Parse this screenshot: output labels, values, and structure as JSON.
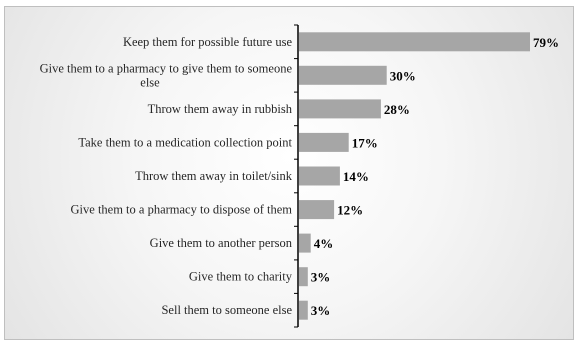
{
  "chart_data": {
    "type": "bar",
    "orientation": "horizontal",
    "categories": [
      [
        "Keep them for possible future use"
      ],
      [
        "Give them to a pharmacy to give them to someone",
        "else"
      ],
      [
        "Throw them away in rubbish"
      ],
      [
        "Take them to a medication collection point"
      ],
      [
        "Throw them away in toilet/sink"
      ],
      [
        "Give them to a pharmacy to dispose of them"
      ],
      [
        "Give them to another person"
      ],
      [
        "Give them to charity"
      ],
      [
        "Sell them to someone else"
      ]
    ],
    "values": [
      79,
      30,
      28,
      17,
      14,
      12,
      4,
      3,
      3
    ],
    "value_labels": [
      "79%",
      "30%",
      "28%",
      "17%",
      "14%",
      "12%",
      "4%",
      "3%",
      "3%"
    ],
    "xlim": [
      0,
      79
    ],
    "grid": false,
    "legend": "none",
    "colors": {
      "bar": "#a6a6a6",
      "axis": "#000000"
    }
  }
}
